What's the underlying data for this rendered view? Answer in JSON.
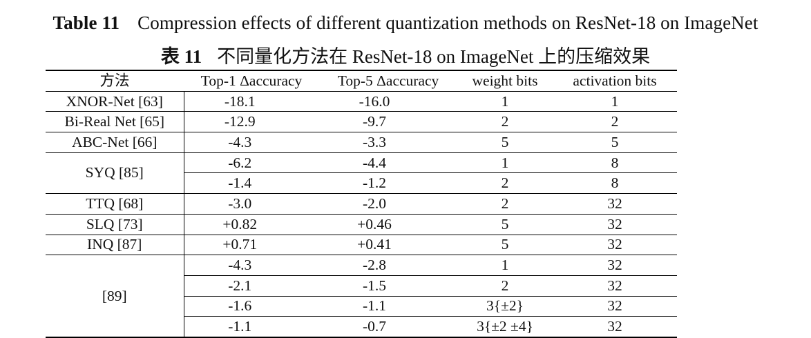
{
  "caption_en": {
    "label": "Table 11",
    "text": "Compression effects of different quantization methods on ResNet-18 on ImageNet"
  },
  "caption_zh": {
    "label": "表 11",
    "text": "不同量化方法在 ResNet-18 on ImageNet 上的压缩效果"
  },
  "table": {
    "headers": [
      "方法",
      "Top-1 Δaccuracy",
      "Top-5 Δaccuracy",
      "weight bits",
      "activation bits"
    ],
    "groups": [
      {
        "method": "XNOR-Net [63]",
        "rows": [
          [
            "-18.1",
            "-16.0",
            "1",
            "1"
          ]
        ]
      },
      {
        "method": "Bi-Real Net [65]",
        "rows": [
          [
            "-12.9",
            "-9.7",
            "2",
            "2"
          ]
        ]
      },
      {
        "method": "ABC-Net [66]",
        "rows": [
          [
            "-4.3",
            "-3.3",
            "5",
            "5"
          ]
        ]
      },
      {
        "method": "SYQ [85]",
        "rows": [
          [
            "-6.2",
            "-4.4",
            "1",
            "8"
          ],
          [
            "-1.4",
            "-1.2",
            "2",
            "8"
          ]
        ]
      },
      {
        "method": "TTQ [68]",
        "rows": [
          [
            "-3.0",
            "-2.0",
            "2",
            "32"
          ]
        ]
      },
      {
        "method": "SLQ [73]",
        "rows": [
          [
            "+0.82",
            "+0.46",
            "5",
            "32"
          ]
        ]
      },
      {
        "method": "INQ [87]",
        "rows": [
          [
            "+0.71",
            "+0.41",
            "5",
            "32"
          ]
        ]
      },
      {
        "method": "[89]",
        "rows": [
          [
            "-4.3",
            "-2.8",
            "1",
            "32"
          ],
          [
            "-2.1",
            "-1.5",
            "2",
            "32"
          ],
          [
            "-1.6",
            "-1.1",
            "3{±2}",
            "32"
          ],
          [
            "-1.1",
            "-0.7",
            "3{±2 ±4}",
            "32"
          ]
        ]
      }
    ]
  }
}
